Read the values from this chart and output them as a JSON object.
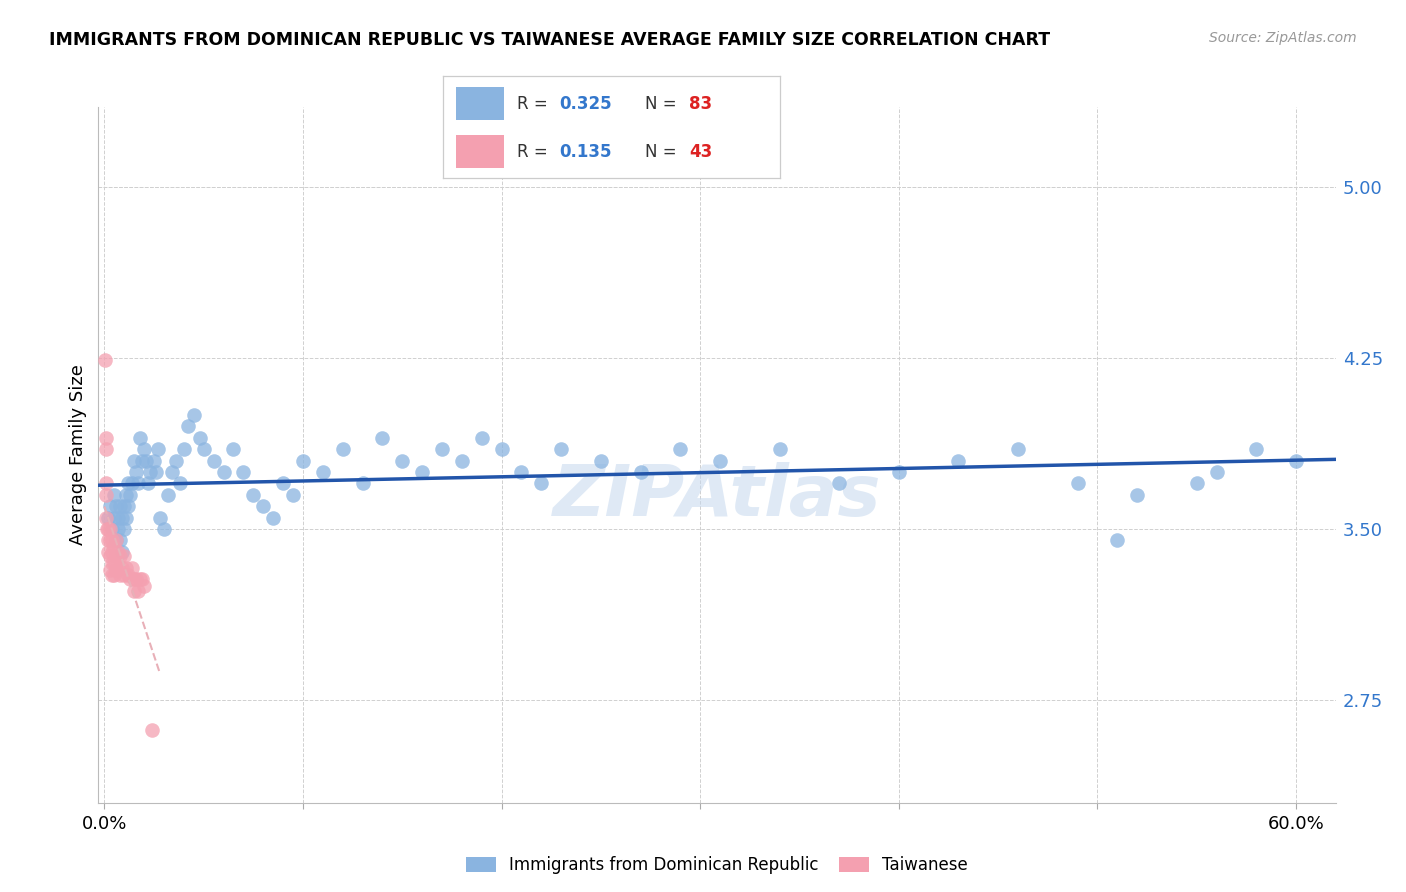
{
  "title": "IMMIGRANTS FROM DOMINICAN REPUBLIC VS TAIWANESE AVERAGE FAMILY SIZE CORRELATION CHART",
  "source": "Source: ZipAtlas.com",
  "ylabel": "Average Family Size",
  "right_yticks": [
    2.75,
    3.5,
    4.25,
    5.0
  ],
  "ylim": [
    2.3,
    5.35
  ],
  "xlim": [
    -0.003,
    0.62
  ],
  "watermark": "ZIPAtlas",
  "blue_color": "#8ab4e0",
  "blue_line_color": "#2255aa",
  "pink_color": "#f4a0b0",
  "pink_dashed_color": "#e8b0b8",
  "blue_legend_color": "#8ab4e0",
  "pink_legend_color": "#f4a0b0",
  "legend_R_color": "#3377cc",
  "legend_N_color": "#dd2222",
  "grid_color": "#d0d0d0",
  "right_tick_color": "#3377cc",
  "blue_x": [
    0.002,
    0.003,
    0.004,
    0.005,
    0.005,
    0.006,
    0.006,
    0.007,
    0.007,
    0.008,
    0.008,
    0.009,
    0.009,
    0.01,
    0.01,
    0.011,
    0.011,
    0.012,
    0.012,
    0.013,
    0.014,
    0.015,
    0.016,
    0.017,
    0.018,
    0.019,
    0.02,
    0.021,
    0.022,
    0.023,
    0.025,
    0.026,
    0.027,
    0.028,
    0.03,
    0.032,
    0.034,
    0.036,
    0.038,
    0.04,
    0.042,
    0.045,
    0.048,
    0.05,
    0.055,
    0.06,
    0.065,
    0.07,
    0.075,
    0.08,
    0.085,
    0.09,
    0.095,
    0.1,
    0.11,
    0.12,
    0.13,
    0.14,
    0.15,
    0.16,
    0.17,
    0.18,
    0.19,
    0.2,
    0.21,
    0.22,
    0.23,
    0.25,
    0.27,
    0.29,
    0.31,
    0.34,
    0.37,
    0.4,
    0.43,
    0.46,
    0.49,
    0.52,
    0.55,
    0.56,
    0.58,
    0.6,
    0.51
  ],
  "blue_y": [
    3.55,
    3.6,
    3.5,
    3.55,
    3.65,
    3.45,
    3.6,
    3.5,
    3.55,
    3.45,
    3.6,
    3.55,
    3.4,
    3.5,
    3.6,
    3.55,
    3.65,
    3.7,
    3.6,
    3.65,
    3.7,
    3.8,
    3.75,
    3.7,
    3.9,
    3.8,
    3.85,
    3.8,
    3.7,
    3.75,
    3.8,
    3.75,
    3.85,
    3.55,
    3.5,
    3.65,
    3.75,
    3.8,
    3.7,
    3.85,
    3.95,
    4.0,
    3.9,
    3.85,
    3.8,
    3.75,
    3.85,
    3.75,
    3.65,
    3.6,
    3.55,
    3.7,
    3.65,
    3.8,
    3.75,
    3.85,
    3.7,
    3.9,
    3.8,
    3.75,
    3.85,
    3.8,
    3.9,
    3.85,
    3.75,
    3.7,
    3.85,
    3.8,
    3.75,
    3.85,
    3.8,
    3.85,
    3.7,
    3.75,
    3.8,
    3.85,
    3.7,
    3.65,
    3.7,
    3.75,
    3.85,
    3.8,
    3.45
  ],
  "pink_x": [
    0.0004,
    0.0006,
    0.0008,
    0.001,
    0.001,
    0.001,
    0.0015,
    0.002,
    0.002,
    0.002,
    0.003,
    0.003,
    0.003,
    0.003,
    0.004,
    0.004,
    0.004,
    0.004,
    0.005,
    0.005,
    0.005,
    0.006,
    0.006,
    0.006,
    0.007,
    0.007,
    0.008,
    0.008,
    0.009,
    0.01,
    0.01,
    0.011,
    0.012,
    0.013,
    0.014,
    0.015,
    0.015,
    0.016,
    0.017,
    0.018,
    0.019,
    0.02,
    0.024
  ],
  "pink_y": [
    4.24,
    3.9,
    3.85,
    3.7,
    3.65,
    3.55,
    3.5,
    3.5,
    3.45,
    3.4,
    3.5,
    3.45,
    3.38,
    3.32,
    3.45,
    3.4,
    3.35,
    3.3,
    3.42,
    3.35,
    3.3,
    3.45,
    3.38,
    3.32,
    3.4,
    3.33,
    3.38,
    3.3,
    3.33,
    3.38,
    3.3,
    3.33,
    3.3,
    3.28,
    3.33,
    3.28,
    3.23,
    3.28,
    3.23,
    3.28,
    3.28,
    3.25,
    2.62
  ]
}
